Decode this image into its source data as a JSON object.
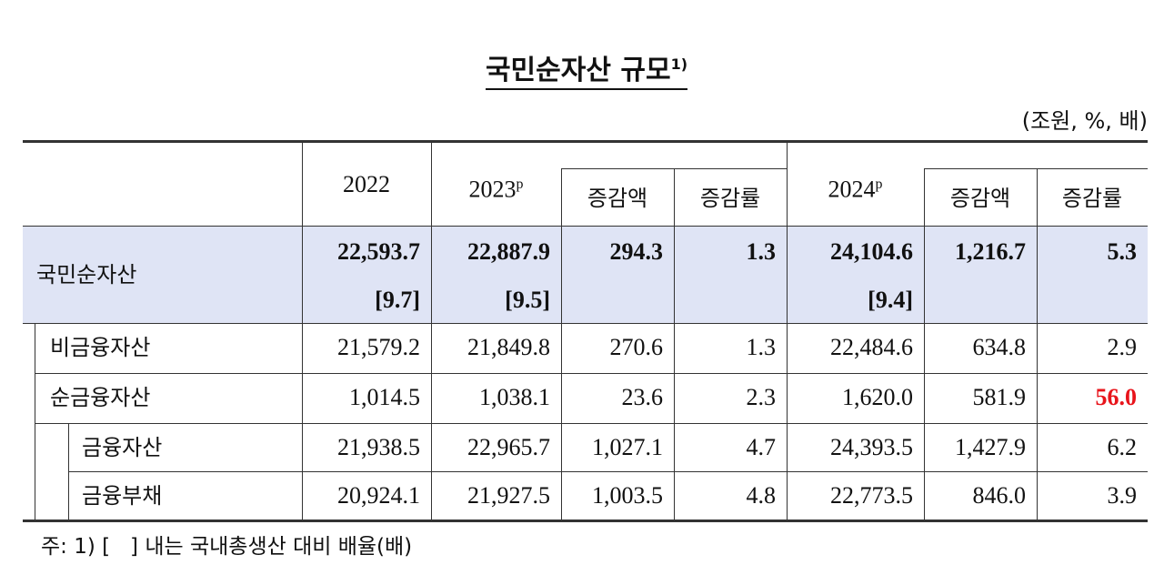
{
  "title": {
    "text": "국민순자산 규모",
    "note": "1)"
  },
  "unit": "(조원, %, 배)",
  "table": {
    "header": {
      "years": [
        {
          "text": "2022"
        },
        {
          "text": "2023",
          "sup": "p"
        },
        {
          "text": "2024",
          "sup": "p"
        }
      ],
      "sub": [
        "증감액",
        "증감률",
        "증감액",
        "증감률"
      ]
    },
    "rows": [
      {
        "label": "국민순자산",
        "values": [
          "22,593.7",
          "22,887.9",
          "294.3",
          "1.3",
          "24,104.6",
          "1,216.7",
          "5.3"
        ],
        "ratios": [
          "[9.7]",
          "[9.5]",
          "[9.4]"
        ],
        "background": "#dfe4f5",
        "bold": true
      },
      {
        "label": "비금융자산",
        "values": [
          "21,579.2",
          "21,849.8",
          "270.6",
          "1.3",
          "22,484.6",
          "634.8",
          "2.9"
        ]
      },
      {
        "label": "순금융자산",
        "values": [
          "1,014.5",
          "1,038.1",
          "23.6",
          "2.3",
          "1,620.0",
          "581.9",
          {
            "text": "56.0",
            "color": "#e8141b",
            "bold": true
          }
        ]
      },
      {
        "label": "금융자산",
        "values": [
          "21,938.5",
          "22,965.7",
          "1,027.1",
          "4.7",
          "24,393.5",
          "1,427.9",
          "6.2"
        ]
      },
      {
        "label": "금융부채",
        "values": [
          "20,924.1",
          "21,927.5",
          "1,003.5",
          "4.8",
          "22,773.5",
          "846.0",
          "3.9"
        ]
      }
    ]
  },
  "footnote": "주: 1) [   ] 내는 국내총생산 대비 배율(배)"
}
